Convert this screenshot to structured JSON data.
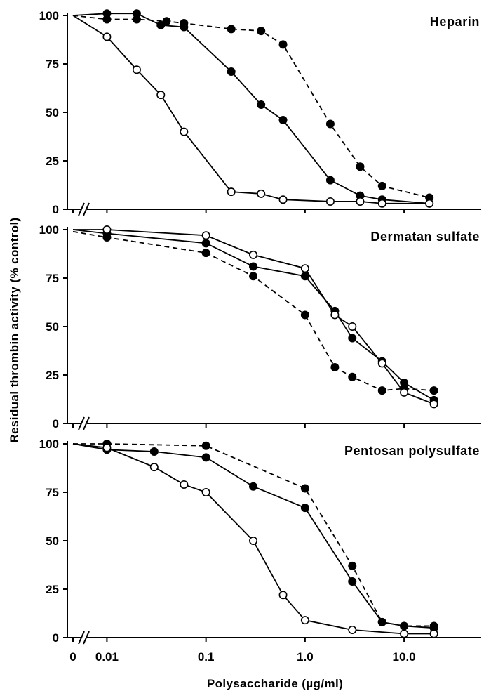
{
  "figure": {
    "ylabel": "Residual thrombin activity (% control)",
    "xlabel": "Polysaccharide (µg/ml)"
  },
  "chart_data": [
    {
      "type": "line",
      "title": "Heparin",
      "x_scale": "log with break at zero",
      "xlim": [
        0.0058,
        60
      ],
      "ylim": [
        0,
        100
      ],
      "yticks": [
        "0",
        "25",
        "50",
        "75",
        "100"
      ],
      "series": [
        {
          "style": "dashed",
          "marker": "filled",
          "x": [
            0,
            0.01,
            0.02,
            0.04,
            0.06,
            0.18,
            0.36,
            0.6,
            1.8,
            3.6,
            6.0,
            18
          ],
          "y": [
            100,
            98,
            98,
            97,
            96,
            93,
            92,
            85,
            44,
            22,
            12,
            6
          ]
        },
        {
          "style": "solid",
          "marker": "filled",
          "x": [
            0,
            0.01,
            0.02,
            0.035,
            0.06,
            0.18,
            0.36,
            0.6,
            1.8,
            3.6,
            6.0,
            18
          ],
          "y": [
            100,
            101,
            101,
            95,
            94,
            71,
            54,
            46,
            15,
            7,
            5,
            3
          ]
        },
        {
          "style": "solid",
          "marker": "open",
          "x": [
            0,
            0.01,
            0.02,
            0.035,
            0.06,
            0.18,
            0.36,
            0.6,
            1.8,
            3.6,
            6.0,
            18
          ],
          "y": [
            100,
            89,
            72,
            59,
            40,
            9,
            8,
            5,
            4,
            4,
            3,
            3
          ]
        }
      ]
    },
    {
      "type": "line",
      "title": "Dermatan sulfate",
      "x_scale": "log with break at zero",
      "xlim": [
        0.0058,
        60
      ],
      "ylim": [
        0,
        100
      ],
      "yticks": [
        "0",
        "25",
        "50",
        "75",
        "100"
      ],
      "series": [
        {
          "style": "dashed",
          "marker": "filled",
          "x": [
            0,
            0.01,
            0.1,
            0.3,
            1.0,
            2.0,
            3.0,
            6.0,
            10,
            20
          ],
          "y": [
            99,
            96,
            88,
            76,
            56,
            29,
            24,
            17,
            18,
            17
          ]
        },
        {
          "style": "solid",
          "marker": "filled",
          "x": [
            0,
            0.01,
            0.1,
            0.3,
            1.0,
            2.0,
            3.0,
            6.0,
            10,
            20
          ],
          "y": [
            100,
            98,
            93,
            81,
            76,
            58,
            44,
            32,
            21,
            12
          ]
        },
        {
          "style": "solid",
          "marker": "open",
          "x": [
            0,
            0.01,
            0.1,
            0.3,
            1.0,
            2.0,
            3.0,
            6.0,
            10,
            20
          ],
          "y": [
            100,
            100,
            97,
            87,
            80,
            56,
            50,
            31,
            16,
            10
          ]
        }
      ]
    },
    {
      "type": "line",
      "title": "Pentosan polysulfate",
      "x_scale": "log with break at zero",
      "xlim": [
        0.0058,
        60
      ],
      "ylim": [
        0,
        100
      ],
      "yticks": [
        "0",
        "25",
        "50",
        "75",
        "100"
      ],
      "series": [
        {
          "style": "dashed",
          "marker": "filled",
          "x": [
            0,
            0.01,
            0.1,
            1.0,
            3.0,
            6.0,
            10,
            20
          ],
          "y": [
            100,
            100,
            99,
            77,
            37,
            8,
            6,
            6
          ]
        },
        {
          "style": "solid",
          "marker": "filled",
          "x": [
            0,
            0.01,
            0.03,
            0.1,
            0.3,
            1.0,
            3.0,
            6.0,
            10,
            20
          ],
          "y": [
            100,
            97,
            96,
            93,
            78,
            67,
            29,
            8,
            6,
            5
          ]
        },
        {
          "style": "solid",
          "marker": "open",
          "x": [
            0,
            0.01,
            0.03,
            0.06,
            0.1,
            0.3,
            0.6,
            1.0,
            3.0,
            10,
            20
          ],
          "y": [
            100,
            98,
            88,
            79,
            75,
            50,
            22,
            9,
            4,
            2,
            2
          ]
        }
      ]
    }
  ],
  "x_ticks": [
    "0",
    "0.01",
    "0.1",
    "1.0",
    "10.0"
  ],
  "x_tick_values": [
    0,
    0.01,
    0.1,
    1.0,
    10.0
  ]
}
